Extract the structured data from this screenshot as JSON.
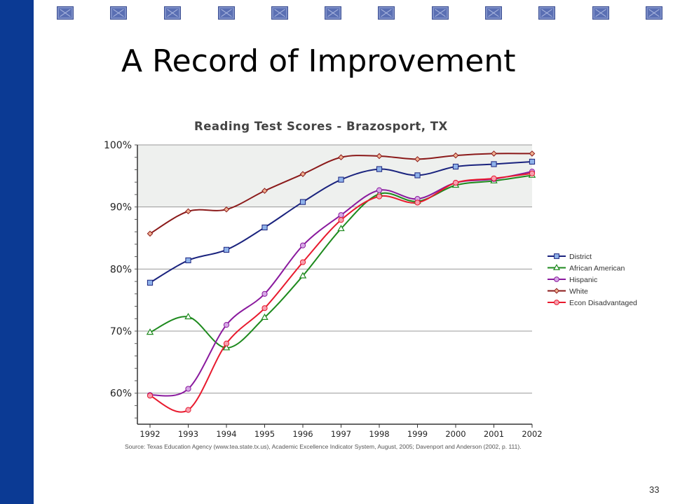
{
  "slide": {
    "title": "A Record of Improvement",
    "page_number": "33",
    "colors": {
      "left_bar": "#0b3a94",
      "squares": "#5a6fb3"
    }
  },
  "chart_data": {
    "type": "line",
    "title": "Reading Test Scores - Brazosport, TX",
    "xlabel": "",
    "ylabel": "",
    "x": [
      1992,
      1993,
      1994,
      1995,
      1996,
      1997,
      1998,
      1999,
      2000,
      2001,
      2002
    ],
    "x_tick_labels": [
      "1992",
      "1993",
      "1994",
      "1995",
      "1996",
      "1997",
      "1998",
      "1999",
      "2000",
      "2001",
      "2002"
    ],
    "y_tick_labels": [
      "100%",
      "90%",
      "80%",
      "70%",
      "60%"
    ],
    "y_ticks": [
      100,
      90,
      80,
      70,
      60
    ],
    "ylim": [
      55,
      100
    ],
    "shaded_band": [
      90,
      100
    ],
    "grid": true,
    "legend_position": "right",
    "series": [
      {
        "name": "District",
        "color": "#1a237e",
        "marker": "square",
        "marker_fill": "#8fb2ea",
        "values": [
          77.8,
          81.4,
          83.1,
          86.7,
          90.8,
          94.4,
          96.1,
          95.1,
          96.5,
          96.9,
          97.3
        ]
      },
      {
        "name": "African American",
        "color": "#1e8a1e",
        "marker": "triangle",
        "marker_fill": "#ffffff",
        "values": [
          69.8,
          72.3,
          67.3,
          72.2,
          78.9,
          86.5,
          92.1,
          90.9,
          93.5,
          94.2,
          95.1
        ]
      },
      {
        "name": "Hispanic",
        "color": "#8a1a9e",
        "marker": "circle",
        "marker_fill": "#d6a8e6",
        "values": [
          59.7,
          60.7,
          71.0,
          76.0,
          83.8,
          88.7,
          92.7,
          91.3,
          93.9,
          94.5,
          95.7
        ]
      },
      {
        "name": "White",
        "color": "#8b1a1a",
        "marker": "diamond",
        "marker_fill": "#f0b090",
        "values": [
          85.7,
          89.3,
          89.6,
          92.6,
          95.3,
          98.0,
          98.2,
          97.7,
          98.3,
          98.6,
          98.6
        ]
      },
      {
        "name": "Econ Disadvantaged",
        "color": "#e81a2e",
        "marker": "circle",
        "marker_fill": "#f7a0b0",
        "values": [
          59.6,
          57.3,
          68.0,
          73.7,
          81.1,
          87.9,
          91.7,
          90.7,
          93.9,
          94.6,
          95.4
        ]
      }
    ],
    "source": "Source: Texas Education Agency (www.tea.state.tx.us), Academic Excellence Indicator System, August, 2005; Davenport and Anderson (2002, p. 111)."
  }
}
